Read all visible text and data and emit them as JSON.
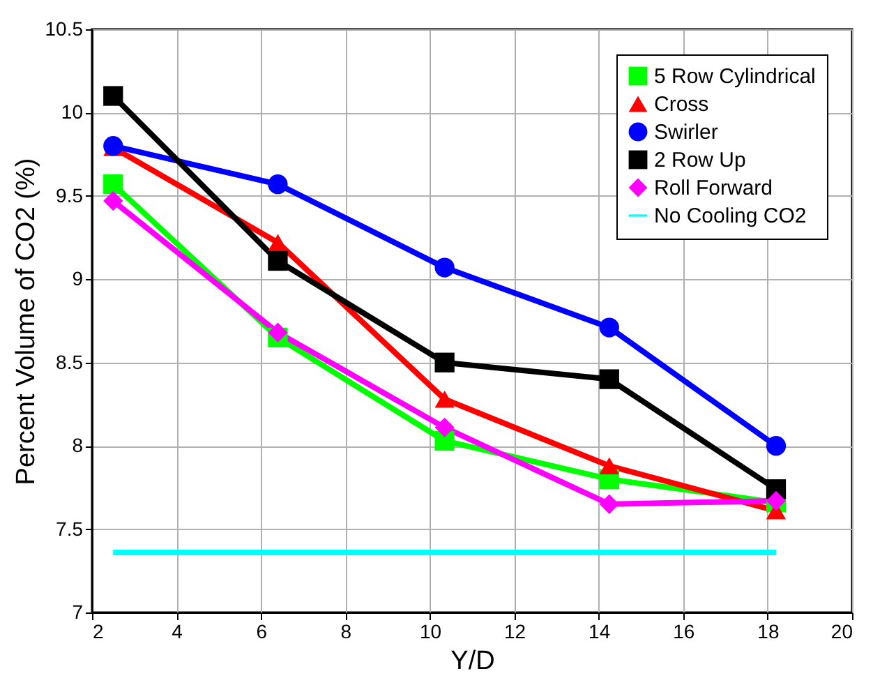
{
  "chart_data": {
    "type": "line",
    "xlabel": "Y/D",
    "ylabel": "Percent Volume of CO2 (%)",
    "x": [
      2.5,
      6.4,
      10.35,
      14.25,
      18.2
    ],
    "series": [
      {
        "name": "5 Row Cylindrical",
        "color": "#00ff00",
        "marker": "square",
        "values": [
          9.57,
          8.65,
          8.03,
          7.8,
          7.66
        ]
      },
      {
        "name": "Cross",
        "color": "#ff0000",
        "marker": "triangle",
        "values": [
          9.79,
          9.22,
          8.28,
          7.88,
          7.61
        ]
      },
      {
        "name": "Swirler",
        "color": "#0000ff",
        "marker": "circle",
        "values": [
          9.8,
          9.57,
          9.07,
          8.71,
          8.0
        ]
      },
      {
        "name": "2 Row Up",
        "color": "#000000",
        "marker": "square",
        "values": [
          10.1,
          9.11,
          8.5,
          8.4,
          7.74
        ]
      },
      {
        "name": "Roll Forward",
        "color": "#ff00ff",
        "marker": "diamond",
        "values": [
          9.47,
          8.68,
          8.11,
          7.65,
          7.67
        ]
      },
      {
        "name": "No Cooling CO2",
        "color": "#00ffff",
        "marker": "none",
        "x": [
          2.5,
          18.2
        ],
        "values": [
          7.36,
          7.36
        ]
      }
    ],
    "xlim": [
      2,
      20
    ],
    "xticks": [
      2,
      4,
      6,
      8,
      10,
      12,
      14,
      16,
      18,
      20
    ],
    "ylim": [
      7,
      10.5
    ],
    "yticks": [
      7,
      7.5,
      8,
      8.5,
      9,
      9.5,
      10,
      10.5
    ],
    "grid": true,
    "legend": "top right",
    "line_style": "solid"
  }
}
